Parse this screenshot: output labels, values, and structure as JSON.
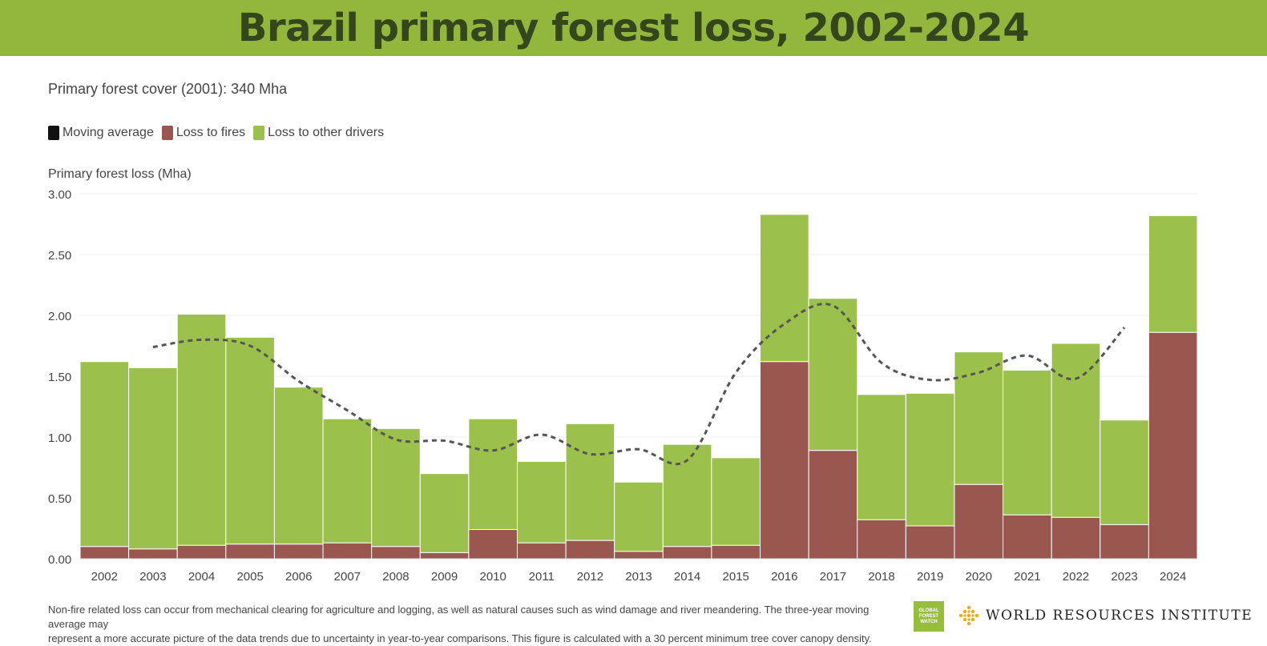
{
  "title": "Brazil primary forest loss, 2002-2024",
  "subtitle": "Primary forest cover (2001): 340 Mha",
  "legend": {
    "moving_average": "Moving average",
    "fires": "Loss to fires",
    "other": "Loss to other drivers"
  },
  "colors": {
    "banner": "#93b73c",
    "title": "#34461c",
    "fires": "#9a5750",
    "other": "#9bc04c",
    "moving_average": "#555555"
  },
  "footnote_line1": "Non-fire related loss can occur from mechanical clearing for agriculture and logging, as well as natural causes such as wind damage and river meandering. The three-year moving average may",
  "footnote_line2": "represent a more accurate picture of the data trends due to uncertainty in year-to-year comparisons. This figure is calculated with a 30 percent minimum tree cover canopy density.",
  "logos": {
    "gfw": [
      "GLOBAL",
      "FOREST",
      "WATCH"
    ],
    "wri": "WORLD RESOURCES INSTITUTE"
  },
  "chart_data": {
    "type": "bar",
    "stacked": true,
    "ylabel": "Primary forest loss (Mha)",
    "ylim": [
      0,
      3
    ],
    "yticks": [
      "0.00",
      "0.50",
      "1.00",
      "1.50",
      "2.00",
      "2.50",
      "3.00"
    ],
    "categories": [
      "2002",
      "2003",
      "2004",
      "2005",
      "2006",
      "2007",
      "2008",
      "2009",
      "2010",
      "2011",
      "2012",
      "2013",
      "2014",
      "2015",
      "2016",
      "2017",
      "2018",
      "2019",
      "2020",
      "2021",
      "2022",
      "2023",
      "2024"
    ],
    "series": [
      {
        "name": "Loss to fires",
        "values": [
          0.1,
          0.08,
          0.11,
          0.12,
          0.12,
          0.13,
          0.1,
          0.05,
          0.24,
          0.13,
          0.15,
          0.06,
          0.1,
          0.11,
          1.62,
          0.89,
          0.32,
          0.27,
          0.61,
          0.36,
          0.34,
          0.28,
          1.86
        ]
      },
      {
        "name": "Loss to other drivers",
        "values": [
          1.52,
          1.49,
          1.9,
          1.7,
          1.29,
          1.02,
          0.97,
          0.65,
          0.91,
          0.67,
          0.96,
          0.57,
          0.84,
          0.72,
          1.21,
          1.25,
          1.03,
          1.09,
          1.09,
          1.19,
          1.43,
          0.86,
          0.96
        ]
      },
      {
        "name": "Moving average",
        "type": "line",
        "x": [
          "2003",
          "2004",
          "2005",
          "2006",
          "2007",
          "2008",
          "2009",
          "2010",
          "2011",
          "2012",
          "2013",
          "2014",
          "2015",
          "2016",
          "2017",
          "2018",
          "2019",
          "2020",
          "2021",
          "2022",
          "2023"
        ],
        "values": [
          1.74,
          1.8,
          1.75,
          1.46,
          1.22,
          0.98,
          0.97,
          0.89,
          1.02,
          0.86,
          0.9,
          0.81,
          1.53,
          1.93,
          2.08,
          1.61,
          1.47,
          1.53,
          1.67,
          1.48,
          1.9
        ]
      }
    ],
    "grid": true
  }
}
